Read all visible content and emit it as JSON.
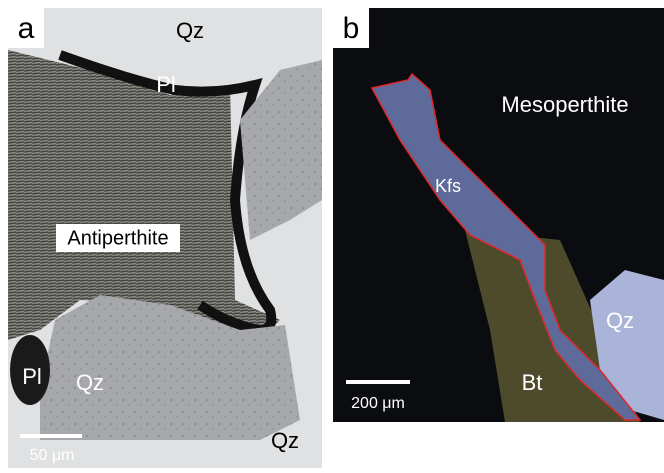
{
  "panels": [
    {
      "label": "a",
      "annotations": [
        "Qz",
        "Pl",
        "Antiperthite",
        "Pl",
        "Qz",
        "Qz"
      ],
      "scale_bar": "50 μm"
    },
    {
      "label": "b",
      "annotations": [
        "Mesoperthite",
        "Kfs",
        "Qz",
        "Bt"
      ],
      "scale_bar": "200 μm"
    }
  ]
}
